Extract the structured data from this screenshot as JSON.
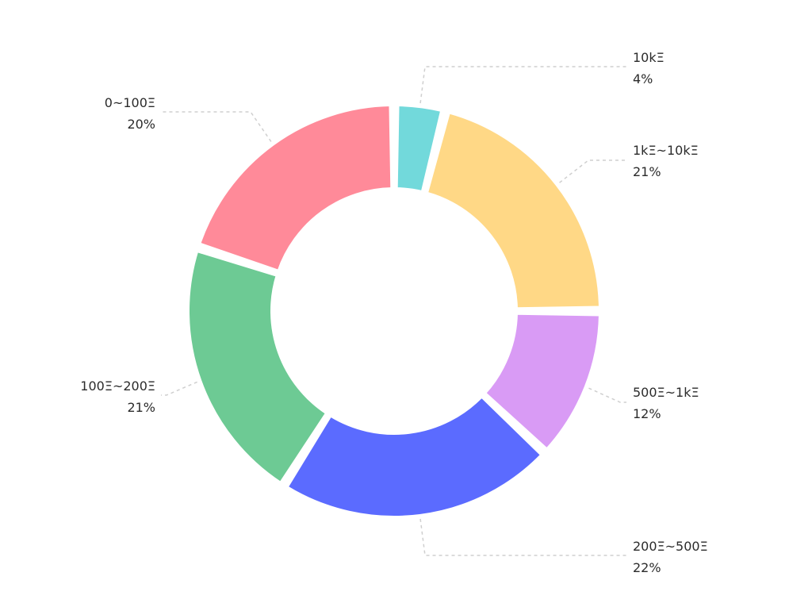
{
  "chart_data": {
    "type": "pie",
    "style": "donut",
    "categories": [
      "10kΞ",
      "1kΞ~10kΞ",
      "500Ξ~1kΞ",
      "200Ξ~500Ξ",
      "100Ξ~200Ξ",
      "0~100Ξ"
    ],
    "values": [
      4,
      21,
      12,
      22,
      21,
      20
    ],
    "value_labels": [
      "4%",
      "21%",
      "12%",
      "22%",
      "21%",
      "20%"
    ],
    "colors": [
      "#72D9DB",
      "#FFD886",
      "#D99BF5",
      "#5B6BFF",
      "#6DCA94",
      "#FF8A99"
    ],
    "legend": "none"
  }
}
